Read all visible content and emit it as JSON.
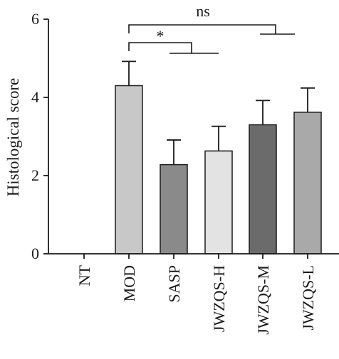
{
  "chart_data": {
    "type": "bar",
    "ylabel": "Histological score",
    "xlabel": "",
    "ylim": [
      0,
      6
    ],
    "yticks": [
      0,
      2,
      4,
      6
    ],
    "categories": [
      "NT",
      "MOD",
      "SASP",
      "JWZQS-H",
      "JWZQS-M",
      "JWZQS-L"
    ],
    "values": [
      0,
      4.3,
      2.28,
      2.63,
      3.3,
      3.62
    ],
    "errors": [
      0,
      0.62,
      0.63,
      0.63,
      0.62,
      0.62
    ],
    "bar_colors": [
      "#ffffff",
      "#c8c8c8",
      "#8a8a8a",
      "#e3e3e3",
      "#6b6b6b",
      "#a9a9a9"
    ],
    "significance": [
      {
        "label": "*",
        "from": "MOD",
        "to": "SASP-JWZQS-H"
      },
      {
        "label": "ns",
        "from": "MOD",
        "to": "JWZQS-M-JWZQS-L"
      }
    ],
    "grid": false,
    "legend": "none"
  }
}
